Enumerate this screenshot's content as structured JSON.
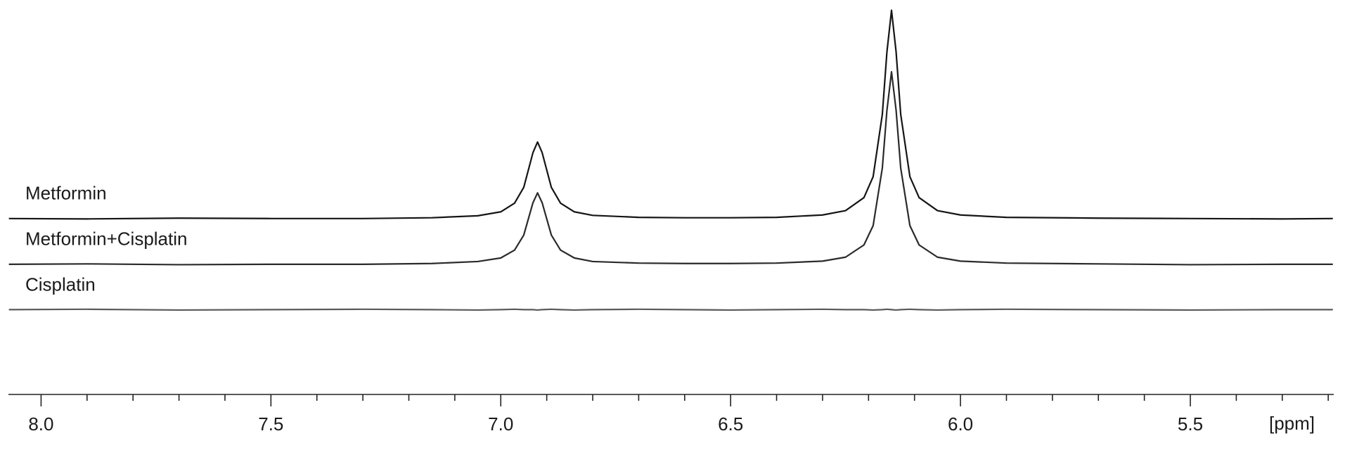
{
  "chart_data": {
    "type": "line",
    "x_label": "[ppm]",
    "x": [
      8.07,
      7.9,
      7.7,
      7.5,
      7.3,
      7.15,
      7.05,
      7.0,
      6.97,
      6.95,
      6.93,
      6.92,
      6.91,
      6.89,
      6.87,
      6.84,
      6.8,
      6.7,
      6.6,
      6.5,
      6.4,
      6.3,
      6.25,
      6.21,
      6.19,
      6.17,
      6.16,
      6.15,
      6.14,
      6.13,
      6.11,
      6.09,
      6.05,
      6.0,
      5.9,
      5.7,
      5.5,
      5.3,
      5.19
    ],
    "series": [
      {
        "name": "Metformin",
        "color": "#151515",
        "values": [
          44.6,
          44.5,
          44.7,
          44.6,
          44.6,
          44.8,
          45.3,
          46.3,
          48.5,
          52.5,
          61.3,
          64.0,
          61.3,
          52.5,
          48.5,
          46.3,
          45.4,
          44.9,
          44.8,
          44.8,
          44.9,
          45.5,
          46.6,
          49.9,
          55.2,
          71.0,
          86.8,
          97.4,
          86.8,
          71.0,
          55.2,
          49.9,
          46.6,
          45.5,
          44.9,
          44.7,
          44.6,
          44.5,
          44.6
        ]
      },
      {
        "name": "Metformin+Cisplatin",
        "color": "#2a2a2a",
        "values": [
          33.0,
          33.1,
          32.9,
          33.0,
          33.0,
          33.2,
          33.7,
          34.6,
          36.6,
          40.4,
          48.6,
          51.1,
          48.6,
          40.4,
          36.6,
          34.6,
          33.7,
          33.3,
          33.2,
          33.2,
          33.3,
          33.8,
          34.8,
          37.9,
          42.8,
          57.4,
          72.0,
          81.8,
          72.0,
          57.4,
          42.8,
          37.9,
          34.8,
          33.8,
          33.3,
          33.1,
          32.9,
          33.0,
          33.0
        ]
      },
      {
        "name": "Cisplatin",
        "color": "#5a5a5a",
        "values": [
          21.5,
          21.6,
          21.4,
          21.5,
          21.6,
          21.5,
          21.4,
          21.5,
          21.6,
          21.5,
          21.5,
          21.4,
          21.5,
          21.6,
          21.5,
          21.4,
          21.5,
          21.6,
          21.5,
          21.4,
          21.5,
          21.6,
          21.5,
          21.5,
          21.4,
          21.5,
          21.6,
          21.5,
          21.4,
          21.5,
          21.6,
          21.5,
          21.4,
          21.5,
          21.6,
          21.5,
          21.4,
          21.5,
          21.5
        ]
      }
    ],
    "xlim": [
      8.071,
      5.188
    ],
    "ylim": [
      0,
      100
    ],
    "x_reversed": true,
    "xticks": [
      {
        "value": 8,
        "label": "8.0"
      },
      7.5,
      {
        "value": 7,
        "label": "7.0"
      },
      6.5,
      {
        "value": 6,
        "label": "6.0"
      },
      5.5
    ],
    "xminorticks": [
      7.9,
      7.8,
      7.7,
      7.6,
      7.4,
      7.3,
      7.2,
      7.1,
      6.9,
      6.8,
      6.7,
      6.6,
      6.4,
      6.3,
      6.2,
      6.1,
      5.9,
      5.8,
      5.7,
      5.6,
      5.4,
      5.3,
      5.2
    ],
    "grid": false
  }
}
